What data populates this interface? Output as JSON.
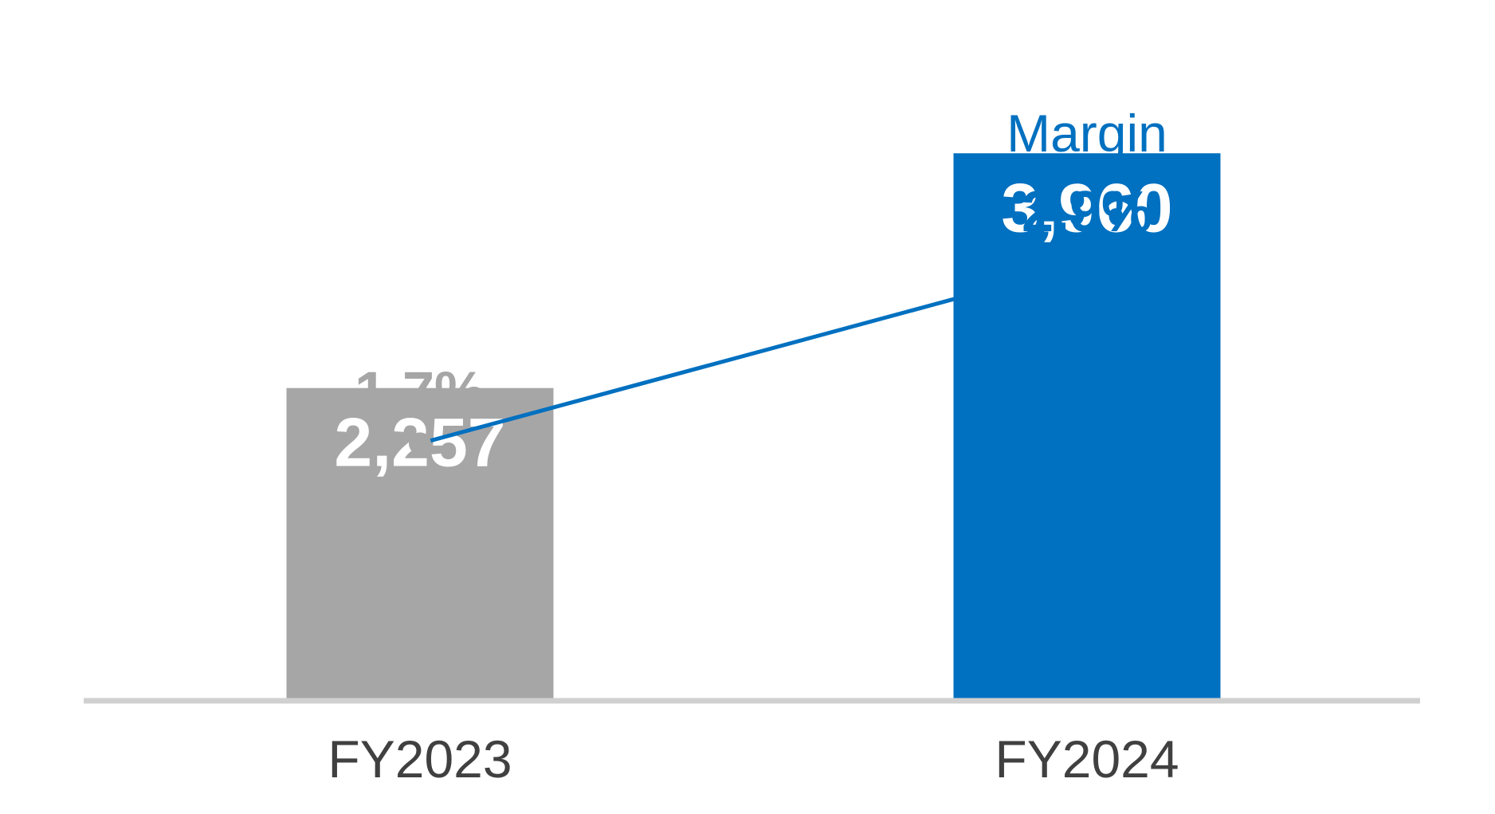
{
  "chart_data": {
    "type": "bar",
    "categories": [
      "FY2023",
      "FY2024"
    ],
    "values": [
      2257,
      3960
    ],
    "value_labels": [
      "2,257",
      "3,960"
    ],
    "bar_colors": [
      "#a6a6a6",
      "#0070c0"
    ],
    "ylim": [
      0,
      4800
    ],
    "grid": false,
    "legend": "none",
    "baseline_color": "#d0d0d0",
    "overlay_line": {
      "type": "line",
      "title": "Margin",
      "values": [
        1.7,
        2.9
      ],
      "value_labels": [
        "1.7%",
        "2.9%"
      ],
      "unit": "%",
      "ylim": [
        0,
        4.4
      ],
      "line_color": "#0070c0",
      "point_colors": [
        "#a6a6a6",
        "#0070c0"
      ],
      "label_colors": [
        "#a6a6a6",
        "#0070c0"
      ]
    }
  }
}
